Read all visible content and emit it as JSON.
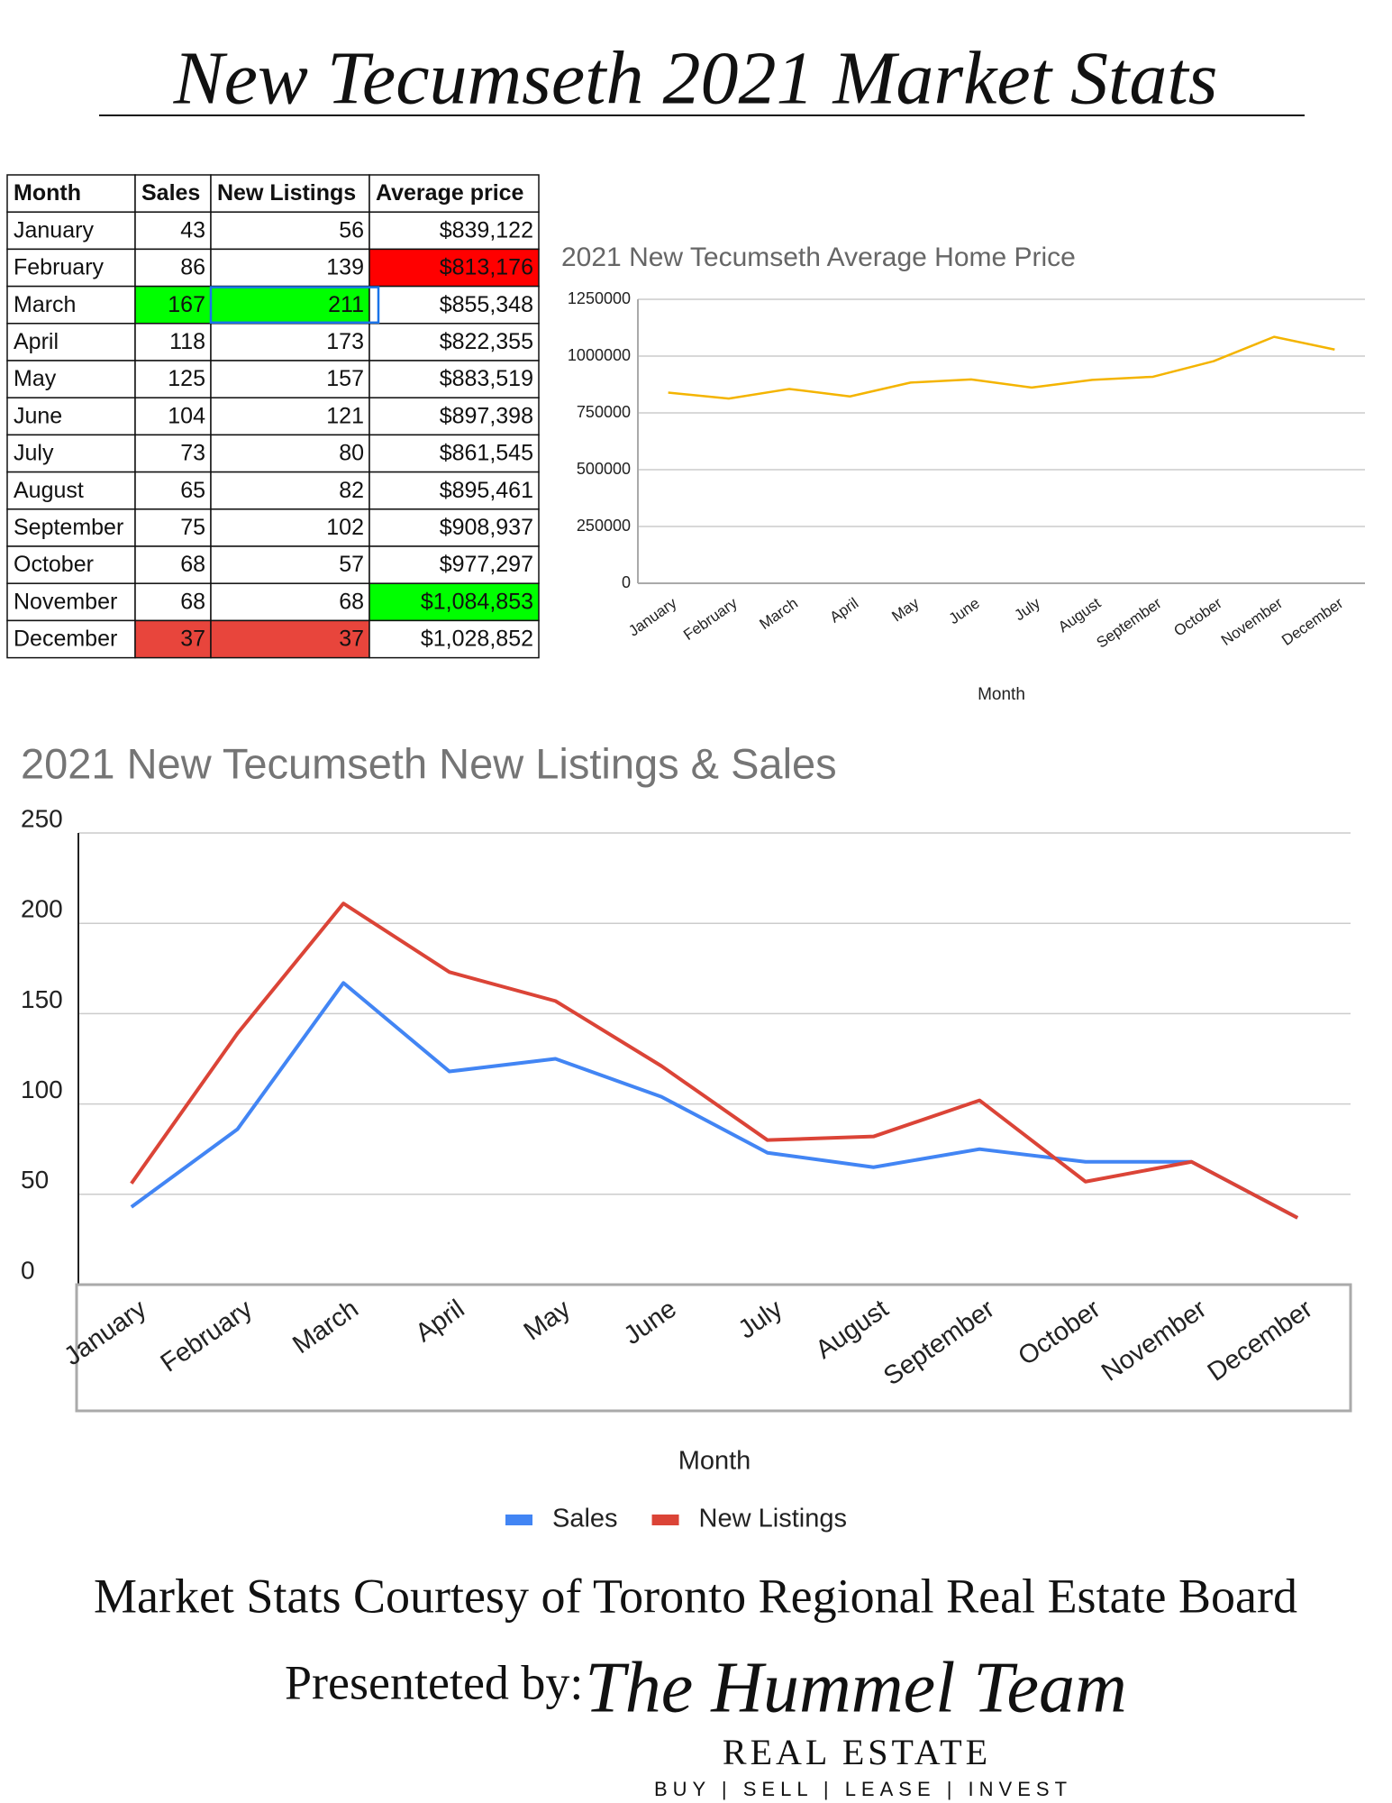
{
  "title": "New Tecumseth 2021 Market Stats",
  "table": {
    "header": [
      "Month",
      "Sales",
      "New Listings",
      "Average price"
    ],
    "rows": [
      [
        "January",
        43,
        56,
        "$839,122"
      ],
      [
        "February",
        86,
        139,
        "$813,176"
      ],
      [
        "March",
        167,
        211,
        "$855,348"
      ],
      [
        "April",
        118,
        173,
        "$822,355"
      ],
      [
        "May",
        125,
        157,
        "$883,519"
      ],
      [
        "June",
        104,
        121,
        "$897,398"
      ],
      [
        "July",
        73,
        80,
        "$861,545"
      ],
      [
        "August",
        65,
        82,
        "$895,461"
      ],
      [
        "September",
        75,
        102,
        "$908,937"
      ],
      [
        "October",
        68,
        57,
        "$977,297"
      ],
      [
        "November",
        68,
        68,
        "$1,084,853"
      ],
      [
        "December",
        37,
        37,
        "$1,028,852"
      ]
    ]
  },
  "chart_data": [
    {
      "type": "line",
      "title": "2021 New Tecumseth Average Home Price",
      "x_label": "Month",
      "categories": [
        "January",
        "February",
        "March",
        "April",
        "May",
        "June",
        "July",
        "August",
        "September",
        "October",
        "November",
        "December"
      ],
      "series": [
        {
          "color": "#f4b400",
          "values": [
            839122,
            813176,
            855348,
            822355,
            883519,
            897398,
            861545,
            895461,
            908937,
            977297,
            1084853,
            1028852
          ]
        }
      ],
      "ylim": [
        0,
        1250000
      ],
      "yticks": [
        0,
        250000,
        500000,
        750000,
        1000000,
        1250000
      ],
      "grid": true
    },
    {
      "type": "line",
      "title": "2021 New Tecumseth New Listings & Sales",
      "x_label": "Month",
      "categories": [
        "January",
        "February",
        "March",
        "April",
        "May",
        "June",
        "July",
        "August",
        "September",
        "October",
        "November",
        "December"
      ],
      "series": [
        {
          "name": "Sales",
          "color": "#4285f4",
          "values": [
            43,
            86,
            167,
            118,
            125,
            104,
            73,
            65,
            75,
            68,
            68,
            37
          ]
        },
        {
          "name": "New Listings",
          "color": "#db4437",
          "values": [
            56,
            139,
            211,
            173,
            157,
            121,
            80,
            82,
            102,
            57,
            68,
            37
          ]
        }
      ],
      "ylim": [
        0,
        250
      ],
      "yticks": [
        0,
        50,
        100,
        150,
        200,
        250
      ],
      "grid": true,
      "legend": "bottom"
    }
  ],
  "footer": {
    "credit": "Market Stats Courtesy of Toronto Regional Real Estate Board",
    "presented": "Presenteted by:",
    "logo": "The Hummel Team",
    "logo_sub": "REAL ESTATE",
    "tagline": "BUY | SELL | LEASE | INVEST"
  }
}
